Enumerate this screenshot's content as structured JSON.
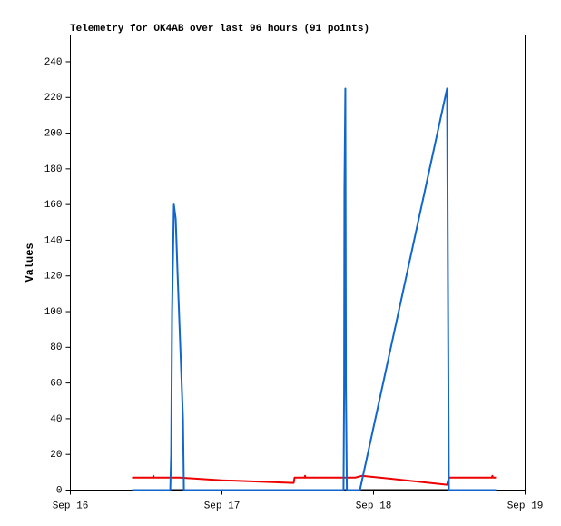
{
  "chart_data": {
    "type": "line",
    "title": "Telemetry for OK4AB over last 96 hours (91 points)",
    "y_label": "Values",
    "xlim": [
      0,
      3
    ],
    "xticks": [
      {
        "value": 0,
        "label": "Sep 16"
      },
      {
        "value": 1,
        "label": "Sep 17"
      },
      {
        "value": 2,
        "label": "Sep 18"
      },
      {
        "value": 3,
        "label": "Sep 19"
      }
    ],
    "ylim": [
      0,
      255
    ],
    "yticks": [
      0,
      20,
      40,
      60,
      80,
      100,
      120,
      140,
      160,
      180,
      200,
      220,
      240
    ],
    "grid": false,
    "series": [
      {
        "color": "#000000",
        "x": [
          0.407,
          2.808
        ],
        "values": [
          0,
          0
        ]
      },
      {
        "color": "#ee0000",
        "x": [
          0.407,
          0.545,
          0.548,
          0.551,
          0.719,
          1.0,
          1.473,
          1.479,
          1.545,
          1.548,
          1.551,
          1.88,
          1.922,
          2.1,
          2.485,
          2.497,
          2.6,
          2.78,
          2.784,
          2.788,
          2.808
        ],
        "values": [
          7,
          7,
          8,
          7,
          7,
          5.5,
          4,
          7,
          7,
          8,
          7,
          7,
          8,
          6.5,
          3,
          7,
          7,
          7,
          8,
          7,
          7
        ]
      },
      {
        "color": "#1166cc",
        "x": [
          0.407,
          0.659,
          0.665,
          0.671,
          0.683,
          0.695,
          0.707,
          0.743,
          0.749,
          1.802,
          1.806,
          1.808,
          1.814,
          1.818,
          1.824,
          1.91,
          2.485,
          2.491,
          2.497,
          2.808
        ],
        "values": [
          0,
          0,
          20,
          100,
          160,
          152,
          122,
          40,
          0,
          0,
          56,
          168,
          225,
          56,
          0,
          0,
          225,
          112,
          0,
          0
        ]
      }
    ]
  }
}
